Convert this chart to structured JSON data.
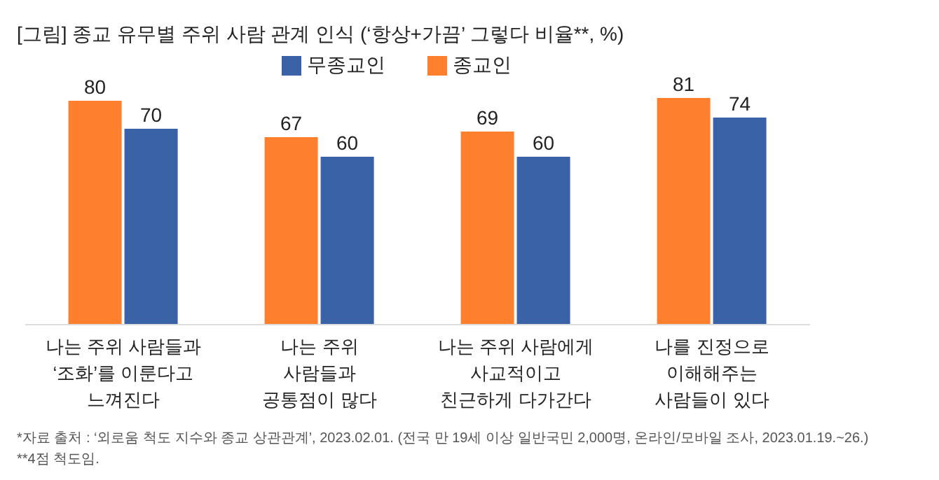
{
  "chart_data": {
    "type": "bar",
    "title": "[그림] 종교 유무별 주위 사람 관계 인식 (‘항상+가끔’ 그렇다 비율**, %)",
    "categories": [
      "나는 주위 사람들과\n‘조화’를 이룬다고\n느껴진다",
      "나는 주위\n사람들과\n공통점이 많다",
      "나는 주위 사람에게\n사교적이고\n친근하게 다가간다",
      "나를 진정으로\n이해해주는\n사람들이 있다"
    ],
    "series": [
      {
        "name": "종교인",
        "color": "#fe7f2d",
        "values": [
          80,
          67,
          69,
          81
        ]
      },
      {
        "name": "무종교인",
        "color": "#3a62a6",
        "values": [
          70,
          60,
          60,
          74
        ]
      }
    ],
    "data_labels": true,
    "legend": "top",
    "grid": false,
    "annotations": [
      "*자료 출처 : ‘외로움 척도 지수와 종교 상관관계’, 2023.02.01. (전국 만 19세 이상 일반국민 2,000명, 온라인/모바일 조사, 2023.01.19.~26.)",
      "**4점 척도임."
    ]
  }
}
